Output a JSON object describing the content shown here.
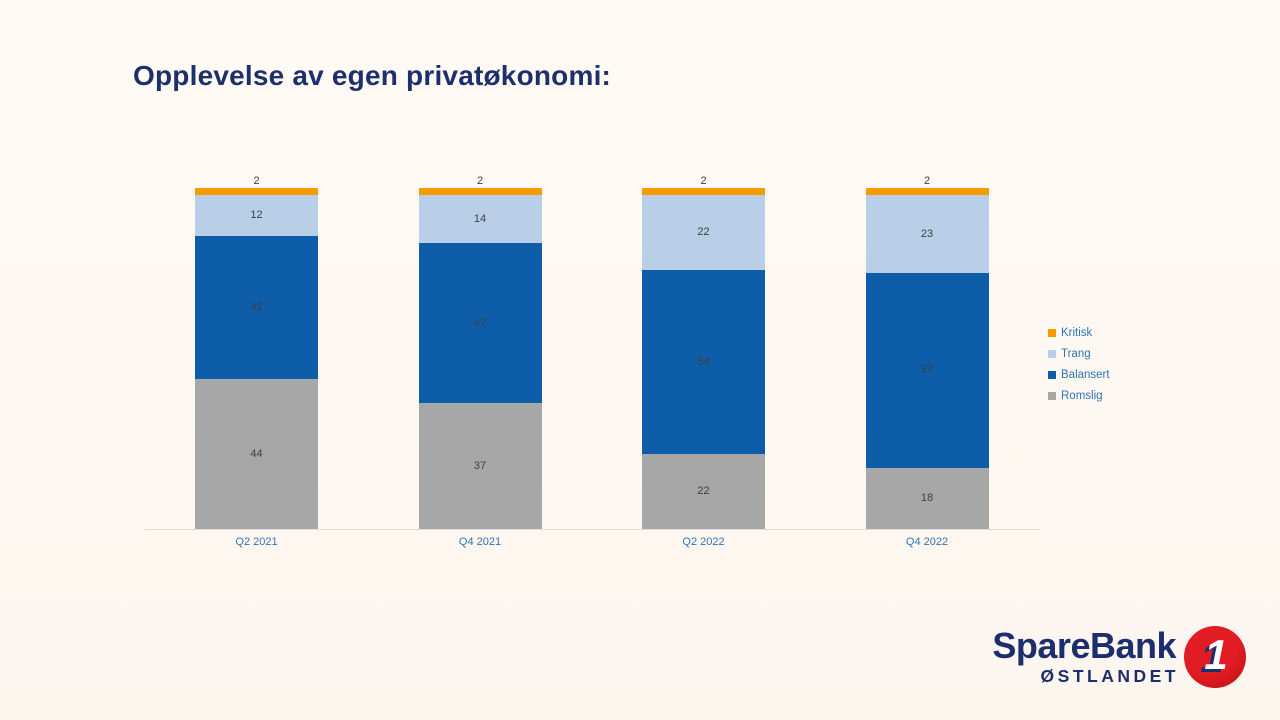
{
  "title": "Opplevelse av egen privatøkonomi:",
  "chart_data": {
    "type": "bar",
    "stacked": true,
    "title": "Opplevelse av egen privatøkonomi:",
    "categories": [
      "Q2 2021",
      "Q4 2021",
      "Q2 2022",
      "Q4 2022"
    ],
    "series": [
      {
        "name": "Romslig",
        "color": "#a7a7a7",
        "values": [
          44,
          37,
          22,
          18
        ]
      },
      {
        "name": "Balansert",
        "color": "#0e5da8",
        "values": [
          42,
          47,
          54,
          57
        ]
      },
      {
        "name": "Trang",
        "color": "#b9cfe8",
        "values": [
          12,
          14,
          22,
          23
        ]
      },
      {
        "name": "Kritisk",
        "color": "#f59b00",
        "values": [
          2,
          2,
          2,
          2
        ]
      }
    ],
    "legend": {
      "position": "right",
      "order": [
        "Kritisk",
        "Trang",
        "Balansert",
        "Romslig"
      ]
    },
    "ylim": [
      0,
      100
    ],
    "grid": false,
    "value_labels": true,
    "xlabel": "",
    "ylabel": ""
  },
  "logo": {
    "brand": "SpareBank",
    "region": "ØSTLANDET",
    "badge": "1",
    "navy": "#1d2e6e",
    "red": "#d81b22"
  }
}
